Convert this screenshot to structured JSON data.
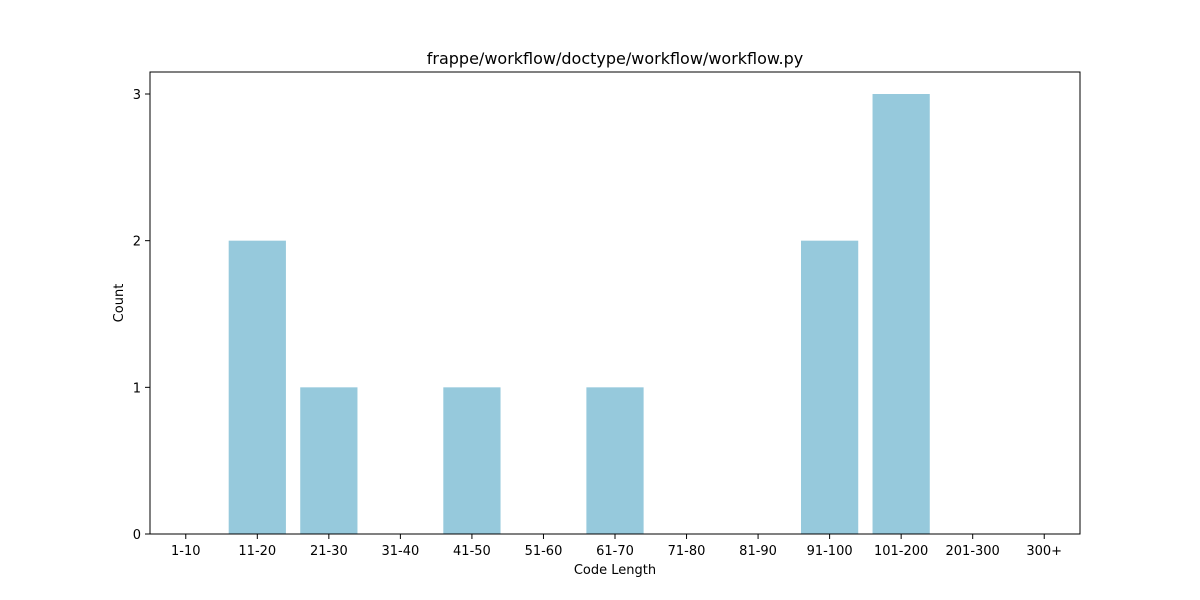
{
  "chart_data": {
    "type": "bar",
    "title": "frappe/workflow/doctype/workflow/workflow.py",
    "xlabel": "Code Length",
    "ylabel": "Count",
    "categories": [
      "1-10",
      "11-20",
      "21-30",
      "31-40",
      "41-50",
      "51-60",
      "61-70",
      "71-80",
      "81-90",
      "91-100",
      "101-200",
      "201-300",
      "300+"
    ],
    "values": [
      0,
      2,
      1,
      0,
      1,
      0,
      1,
      0,
      0,
      2,
      3,
      0,
      0
    ],
    "yticks": [
      "0",
      "1",
      "2",
      "3"
    ],
    "ylim": [
      0,
      3.15
    ],
    "grid": false,
    "bar_color": "#96c9dc"
  }
}
